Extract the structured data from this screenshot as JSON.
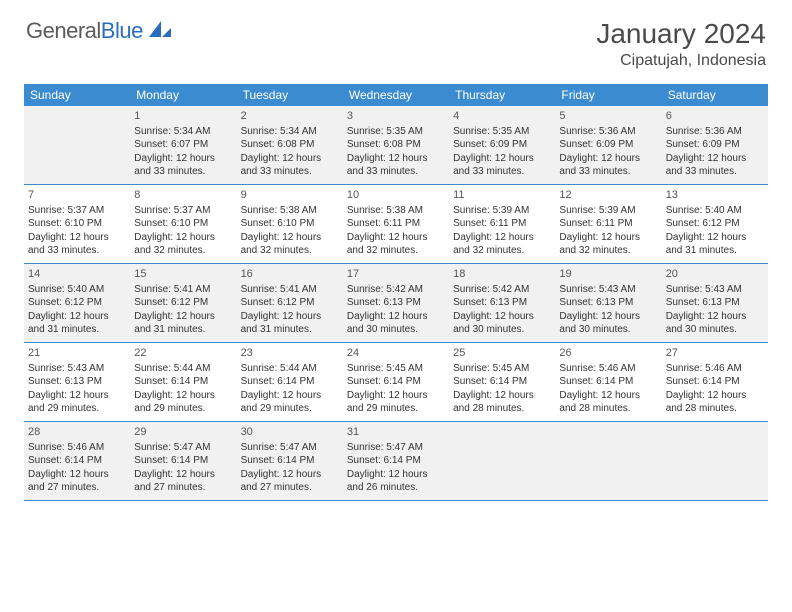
{
  "logo": {
    "word1": "General",
    "word2": "Blue"
  },
  "title": "January 2024",
  "location": "Cipatujah, Indonesia",
  "dayHeaders": [
    "Sunday",
    "Monday",
    "Tuesday",
    "Wednesday",
    "Thursday",
    "Friday",
    "Saturday"
  ],
  "colors": {
    "headerBlue": "#3b8bd0",
    "logoBlue": "#2a6ebb",
    "altRow": "#f1f1f1",
    "text": "#333333",
    "titleText": "#4a4a4a"
  },
  "weeks": [
    [
      null,
      {
        "n": "1",
        "sr": "5:34 AM",
        "ss": "6:07 PM",
        "dl": "12 hours and 33 minutes."
      },
      {
        "n": "2",
        "sr": "5:34 AM",
        "ss": "6:08 PM",
        "dl": "12 hours and 33 minutes."
      },
      {
        "n": "3",
        "sr": "5:35 AM",
        "ss": "6:08 PM",
        "dl": "12 hours and 33 minutes."
      },
      {
        "n": "4",
        "sr": "5:35 AM",
        "ss": "6:09 PM",
        "dl": "12 hours and 33 minutes."
      },
      {
        "n": "5",
        "sr": "5:36 AM",
        "ss": "6:09 PM",
        "dl": "12 hours and 33 minutes."
      },
      {
        "n": "6",
        "sr": "5:36 AM",
        "ss": "6:09 PM",
        "dl": "12 hours and 33 minutes."
      }
    ],
    [
      {
        "n": "7",
        "sr": "5:37 AM",
        "ss": "6:10 PM",
        "dl": "12 hours and 33 minutes."
      },
      {
        "n": "8",
        "sr": "5:37 AM",
        "ss": "6:10 PM",
        "dl": "12 hours and 32 minutes."
      },
      {
        "n": "9",
        "sr": "5:38 AM",
        "ss": "6:10 PM",
        "dl": "12 hours and 32 minutes."
      },
      {
        "n": "10",
        "sr": "5:38 AM",
        "ss": "6:11 PM",
        "dl": "12 hours and 32 minutes."
      },
      {
        "n": "11",
        "sr": "5:39 AM",
        "ss": "6:11 PM",
        "dl": "12 hours and 32 minutes."
      },
      {
        "n": "12",
        "sr": "5:39 AM",
        "ss": "6:11 PM",
        "dl": "12 hours and 32 minutes."
      },
      {
        "n": "13",
        "sr": "5:40 AM",
        "ss": "6:12 PM",
        "dl": "12 hours and 31 minutes."
      }
    ],
    [
      {
        "n": "14",
        "sr": "5:40 AM",
        "ss": "6:12 PM",
        "dl": "12 hours and 31 minutes."
      },
      {
        "n": "15",
        "sr": "5:41 AM",
        "ss": "6:12 PM",
        "dl": "12 hours and 31 minutes."
      },
      {
        "n": "16",
        "sr": "5:41 AM",
        "ss": "6:12 PM",
        "dl": "12 hours and 31 minutes."
      },
      {
        "n": "17",
        "sr": "5:42 AM",
        "ss": "6:13 PM",
        "dl": "12 hours and 30 minutes."
      },
      {
        "n": "18",
        "sr": "5:42 AM",
        "ss": "6:13 PM",
        "dl": "12 hours and 30 minutes."
      },
      {
        "n": "19",
        "sr": "5:43 AM",
        "ss": "6:13 PM",
        "dl": "12 hours and 30 minutes."
      },
      {
        "n": "20",
        "sr": "5:43 AM",
        "ss": "6:13 PM",
        "dl": "12 hours and 30 minutes."
      }
    ],
    [
      {
        "n": "21",
        "sr": "5:43 AM",
        "ss": "6:13 PM",
        "dl": "12 hours and 29 minutes."
      },
      {
        "n": "22",
        "sr": "5:44 AM",
        "ss": "6:14 PM",
        "dl": "12 hours and 29 minutes."
      },
      {
        "n": "23",
        "sr": "5:44 AM",
        "ss": "6:14 PM",
        "dl": "12 hours and 29 minutes."
      },
      {
        "n": "24",
        "sr": "5:45 AM",
        "ss": "6:14 PM",
        "dl": "12 hours and 29 minutes."
      },
      {
        "n": "25",
        "sr": "5:45 AM",
        "ss": "6:14 PM",
        "dl": "12 hours and 28 minutes."
      },
      {
        "n": "26",
        "sr": "5:46 AM",
        "ss": "6:14 PM",
        "dl": "12 hours and 28 minutes."
      },
      {
        "n": "27",
        "sr": "5:46 AM",
        "ss": "6:14 PM",
        "dl": "12 hours and 28 minutes."
      }
    ],
    [
      {
        "n": "28",
        "sr": "5:46 AM",
        "ss": "6:14 PM",
        "dl": "12 hours and 27 minutes."
      },
      {
        "n": "29",
        "sr": "5:47 AM",
        "ss": "6:14 PM",
        "dl": "12 hours and 27 minutes."
      },
      {
        "n": "30",
        "sr": "5:47 AM",
        "ss": "6:14 PM",
        "dl": "12 hours and 27 minutes."
      },
      {
        "n": "31",
        "sr": "5:47 AM",
        "ss": "6:14 PM",
        "dl": "12 hours and 26 minutes."
      },
      null,
      null,
      null
    ]
  ],
  "labels": {
    "sunrise": "Sunrise:",
    "sunset": "Sunset:",
    "daylight": "Daylight:"
  }
}
